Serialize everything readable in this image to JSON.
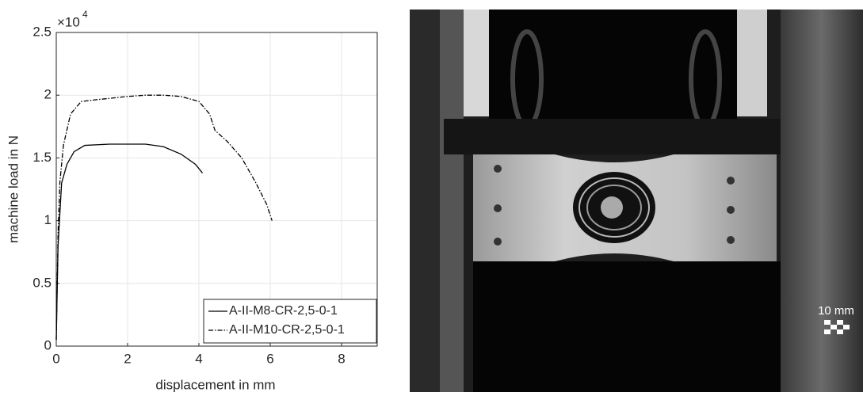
{
  "chart_data": {
    "type": "line",
    "xlabel": "displacement in mm",
    "ylabel": "machine load in N",
    "y_multiplier": {
      "base": "×10",
      "exponent": "4"
    },
    "xlim": [
      0,
      9
    ],
    "xticks": [
      0,
      2,
      4,
      6,
      8
    ],
    "ylim": [
      0,
      2.5
    ],
    "yticks": [
      0,
      0.5,
      1,
      1.5,
      2,
      2.5
    ],
    "grid": true,
    "legend": "lower right",
    "series": [
      {
        "name": "A-II-M8-CR-2,5-0-1",
        "color": "#000000",
        "dash": "solid",
        "x": [
          0,
          0.05,
          0.15,
          0.3,
          0.5,
          0.8,
          1.5,
          2.5,
          3,
          3.5,
          3.9,
          4.1
        ],
        "values": [
          0.05,
          0.8,
          1.3,
          1.45,
          1.55,
          1.6,
          1.61,
          1.61,
          1.59,
          1.53,
          1.45,
          1.38
        ]
      },
      {
        "name": "A-II-M10-CR-2,5-0-1",
        "color": "#000000",
        "dash": "dashdot",
        "x": [
          0,
          0.05,
          0.1,
          0.2,
          0.4,
          0.7,
          1,
          2,
          2.5,
          3,
          3.5,
          4,
          4.3,
          4.45,
          4.8,
          5.2,
          5.6,
          5.9,
          6.05
        ],
        "values": [
          0.05,
          0.9,
          1.3,
          1.6,
          1.85,
          1.95,
          1.96,
          1.99,
          2.0,
          2.0,
          1.99,
          1.95,
          1.85,
          1.72,
          1.63,
          1.5,
          1.3,
          1.13,
          1.0
        ]
      }
    ]
  },
  "photo": {
    "scale_label": "10 mm"
  }
}
